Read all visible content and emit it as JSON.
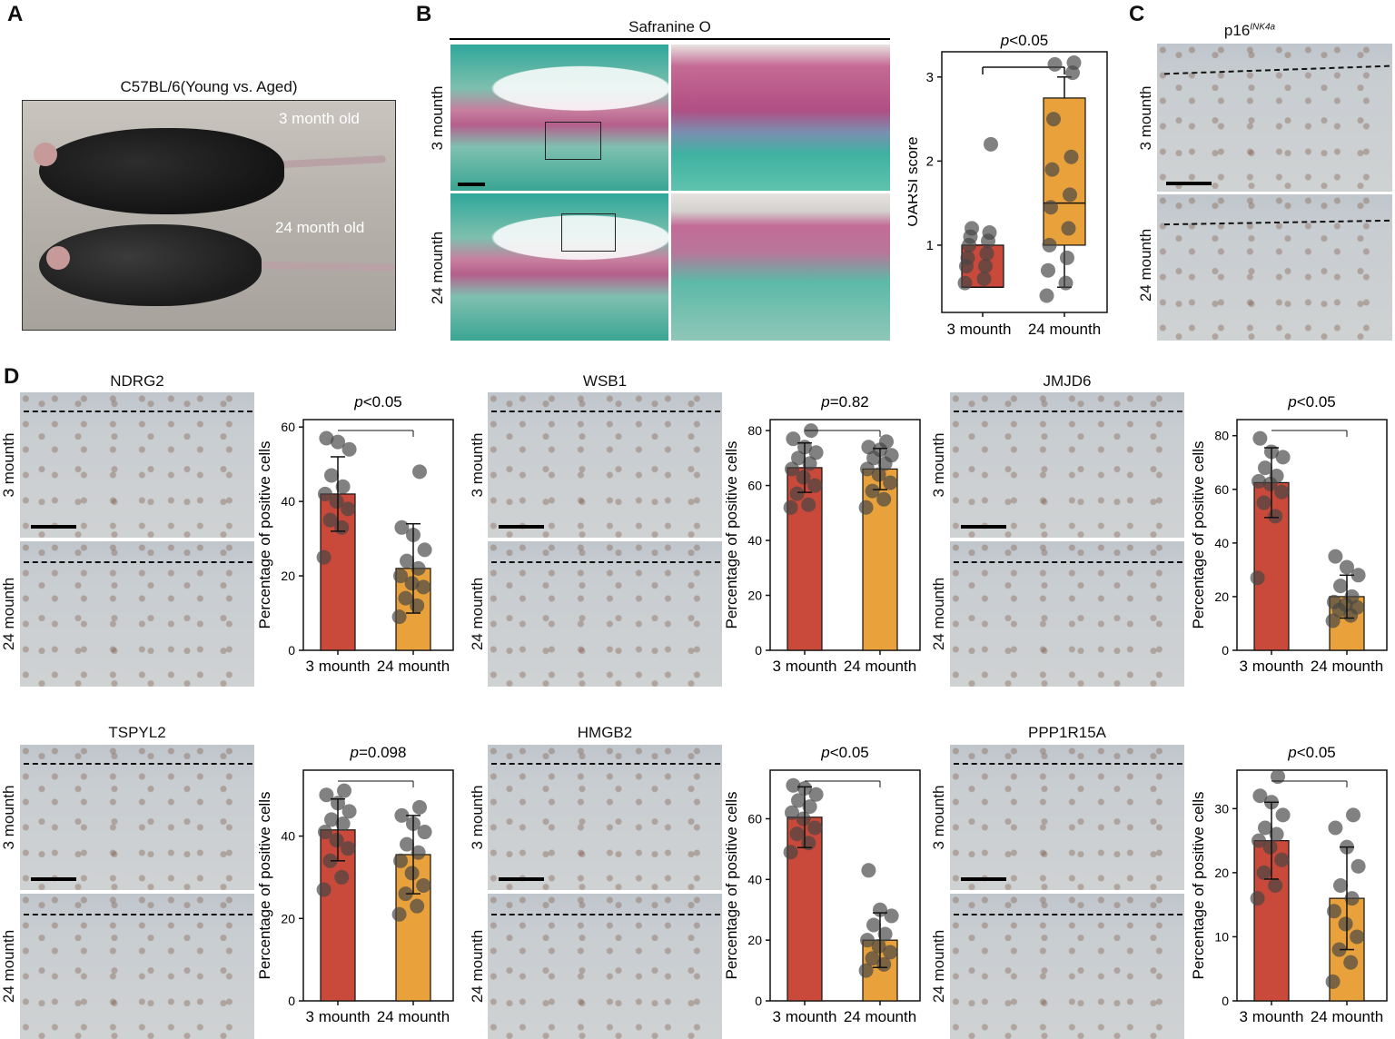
{
  "panels": {
    "A": {
      "label": "A",
      "title": "C57BL/6(Young vs. Aged)",
      "young_label": "3 month old",
      "aged_label": "24 month old"
    },
    "B": {
      "label": "B",
      "stain": "Safranine O",
      "row1": "3 mounth",
      "row2": "24 mounth"
    },
    "C": {
      "label": "C",
      "title_main": "p16",
      "title_sup": "INK4a",
      "row1": "3 mounth",
      "row2": "24 mounth"
    },
    "D": {
      "label": "D"
    }
  },
  "ihc_rows": [
    "3 mounth",
    "24 mounth"
  ],
  "chart_data": [
    {
      "id": "oarsi",
      "type": "box",
      "title": "",
      "ylabel": "OARSI score",
      "ylim": [
        0.2,
        3.3
      ],
      "yticks": [
        1,
        2,
        3
      ],
      "pvalue": "p<0.05",
      "categories": [
        "3 mounth",
        "24 mounth"
      ],
      "colors": [
        "#c9493a",
        "#e9a23b"
      ],
      "boxes": [
        {
          "q1": 0.5,
          "median": 0.5,
          "q3": 1.0,
          "whisker_low": 0.5,
          "whisker_high": 1.0
        },
        {
          "q1": 1.0,
          "median": 1.5,
          "q3": 2.75,
          "whisker_low": 0.5,
          "whisker_high": 3.0
        }
      ],
      "points": [
        [
          0.55,
          0.6,
          0.75,
          0.75,
          0.85,
          0.9,
          1.0,
          1.05,
          1.1,
          1.15,
          1.2,
          2.2
        ],
        [
          0.4,
          0.55,
          0.7,
          0.85,
          1.0,
          1.2,
          1.45,
          1.6,
          1.9,
          2.05,
          2.5,
          3.05,
          3.15,
          3.17
        ]
      ]
    },
    {
      "id": "ndrg2",
      "type": "bar",
      "title": "NDRG2",
      "ylabel": "Percentage of  positive cells",
      "ylim": [
        0,
        62
      ],
      "yticks": [
        0,
        20,
        40,
        60
      ],
      "pvalue": "p<0.05",
      "categories": [
        "3 mounth",
        "24 mounth"
      ],
      "colors": [
        "#c9493a",
        "#e9a23b"
      ],
      "values": [
        42,
        22
      ],
      "err": [
        10,
        12
      ],
      "points": [
        [
          25,
          33,
          35,
          38,
          40,
          42,
          44,
          47,
          54,
          56,
          57
        ],
        [
          9,
          12,
          14,
          17,
          18,
          20,
          22,
          24,
          27,
          31,
          33,
          48
        ]
      ]
    },
    {
      "id": "wsb1",
      "type": "bar",
      "title": "WSB1",
      "ylabel": "Percentage of  positive cells",
      "ylim": [
        0,
        84
      ],
      "yticks": [
        0,
        20,
        40,
        60,
        80
      ],
      "pvalue": "p=0.82",
      "categories": [
        "3 mounth",
        "24 mounth"
      ],
      "colors": [
        "#c9493a",
        "#e9a23b"
      ],
      "values": [
        66.5,
        66
      ],
      "err": [
        9,
        7.5
      ],
      "points": [
        [
          52,
          53,
          57,
          60,
          63,
          66,
          68,
          70,
          72,
          74,
          77,
          80
        ],
        [
          52,
          55,
          58,
          61,
          64,
          66,
          68,
          70,
          71,
          73,
          74,
          76
        ]
      ]
    },
    {
      "id": "jmjd6",
      "type": "bar",
      "title": "JMJD6",
      "ylabel": "Percentage of  positive cells",
      "ylim": [
        0,
        86
      ],
      "yticks": [
        0,
        20,
        40,
        60,
        80
      ],
      "pvalue": "p<0.05",
      "categories": [
        "3 mounth",
        "24 mounth"
      ],
      "colors": [
        "#c9493a",
        "#e9a23b"
      ],
      "values": [
        62.5,
        20
      ],
      "err": [
        13,
        8
      ],
      "points": [
        [
          27,
          50,
          55,
          59,
          62,
          63,
          65,
          68,
          72,
          74,
          79
        ],
        [
          11,
          13,
          15,
          16,
          17,
          18,
          20,
          24,
          28,
          31,
          35
        ]
      ]
    },
    {
      "id": "tspyl2",
      "type": "bar",
      "title": "TSPYL2",
      "ylabel": "Percentage of  positive cells",
      "ylim": [
        0,
        56
      ],
      "yticks": [
        0,
        20,
        40
      ],
      "pvalue": "p=0.098",
      "categories": [
        "3 mounth",
        "24 mounth"
      ],
      "colors": [
        "#c9493a",
        "#e9a23b"
      ],
      "values": [
        41.5,
        35.5
      ],
      "err": [
        7.5,
        9.5
      ],
      "points": [
        [
          27,
          30,
          34,
          37,
          39,
          41,
          43,
          44,
          46,
          48,
          50,
          51
        ],
        [
          21,
          23,
          26,
          28,
          31,
          34,
          36,
          38,
          41,
          43,
          45,
          47
        ]
      ]
    },
    {
      "id": "hmgb2",
      "type": "bar",
      "title": "HMGB2",
      "ylabel": "Percentage of  positive cells",
      "ylim": [
        0,
        76
      ],
      "yticks": [
        0,
        20,
        40,
        60
      ],
      "pvalue": "p<0.05",
      "categories": [
        "3 mounth",
        "24 mounth"
      ],
      "colors": [
        "#c9493a",
        "#e9a23b"
      ],
      "values": [
        60.5,
        20
      ],
      "err": [
        10,
        9
      ],
      "points": [
        [
          49,
          52,
          55,
          57,
          60,
          62,
          64,
          66,
          68,
          70,
          71
        ],
        [
          10,
          12,
          14,
          16,
          18,
          20,
          22,
          25,
          28,
          30,
          43
        ]
      ]
    },
    {
      "id": "ppp1r15a",
      "type": "bar",
      "title": "PPP1R15A",
      "ylabel": "Percentage of  positive cells",
      "ylim": [
        0,
        36
      ],
      "yticks": [
        0,
        10,
        20,
        30
      ],
      "pvalue": "p<0.05",
      "categories": [
        "3 mounth",
        "24 mounth"
      ],
      "colors": [
        "#c9493a",
        "#e9a23b"
      ],
      "values": [
        25,
        16
      ],
      "err": [
        6,
        8
      ],
      "points": [
        [
          16,
          18,
          20,
          22,
          24,
          25,
          26,
          27,
          29,
          31,
          32,
          35
        ],
        [
          3,
          6,
          8,
          10,
          12,
          14,
          16,
          18,
          21,
          24,
          27,
          29
        ]
      ]
    }
  ]
}
